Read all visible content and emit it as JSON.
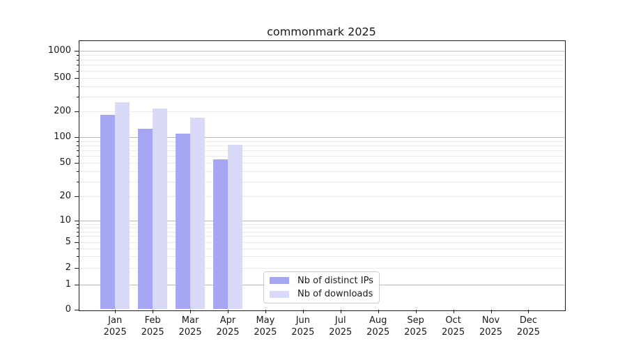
{
  "chart_data": {
    "type": "bar",
    "title": "commonmark 2025",
    "categories": [
      "Jan",
      "Feb",
      "Mar",
      "Apr",
      "May",
      "Jun",
      "Jul",
      "Aug",
      "Sep",
      "Oct",
      "Nov",
      "Dec"
    ],
    "category_year": "2025",
    "series": [
      {
        "name": "Nb of distinct IPs",
        "color": "#a6a6f4",
        "values": [
          182,
          125,
          110,
          55,
          0,
          0,
          0,
          0,
          0,
          0,
          0,
          0
        ]
      },
      {
        "name": "Nb of downloads",
        "color": "#d9d9f8",
        "values": [
          255,
          215,
          170,
          82,
          0,
          0,
          0,
          0,
          0,
          0,
          0,
          0
        ]
      }
    ],
    "yscale": "symlog",
    "yticks": [
      0,
      1,
      2,
      5,
      10,
      20,
      50,
      100,
      200,
      500,
      1000
    ],
    "ytick_labels": [
      "0",
      "1",
      "2",
      "5",
      "10",
      "20",
      "50",
      "100",
      "200",
      "500",
      "1000"
    ],
    "ylim": [
      0,
      1200
    ],
    "grid": "horizontal",
    "legend_position": "lower center-left"
  }
}
